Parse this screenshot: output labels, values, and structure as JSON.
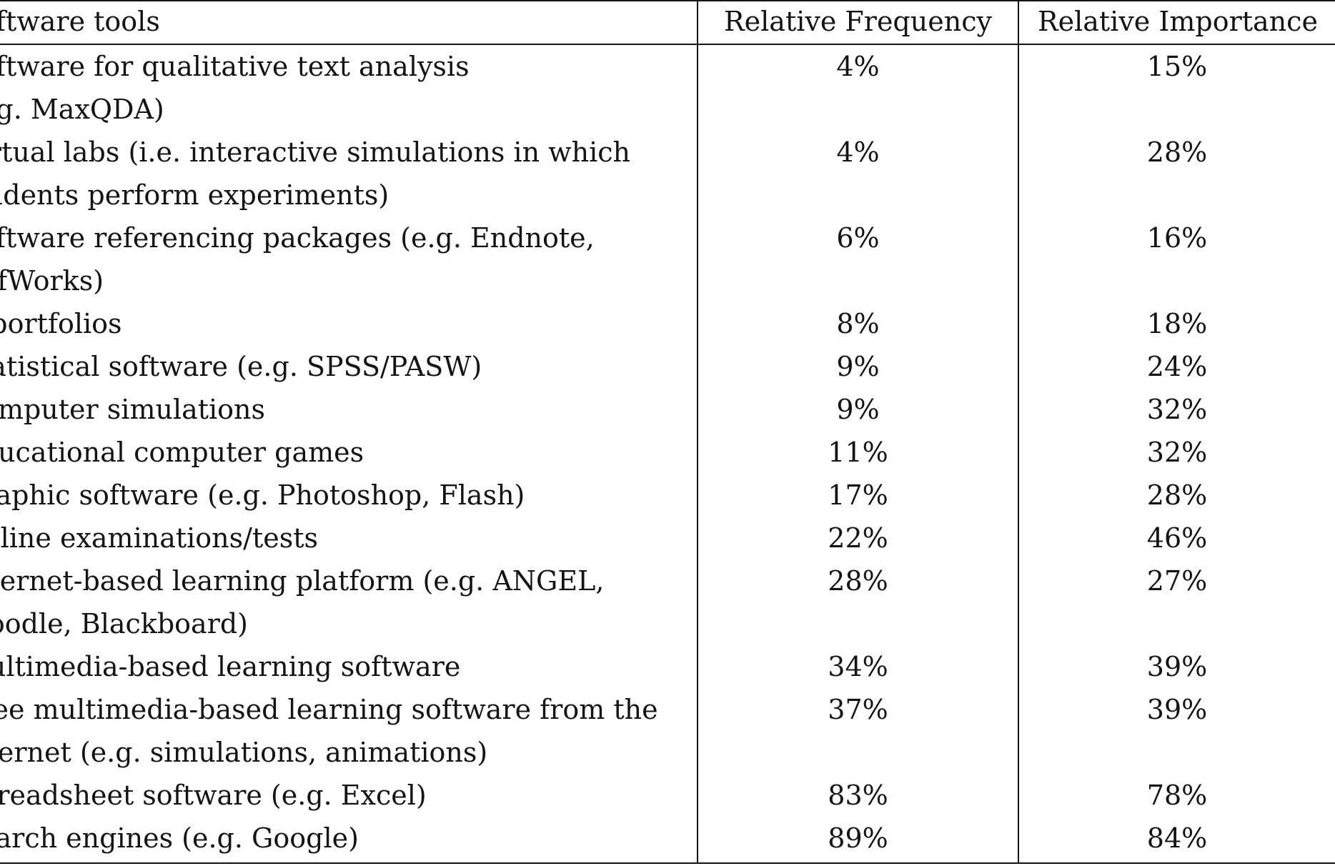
{
  "table": {
    "headers": {
      "tool": "Software tools",
      "frequency": "Relative Frequency",
      "importance": "Relative Importance"
    },
    "rows": [
      {
        "tool": [
          "Software for qualitative text analysis",
          "(e.g. MaxQDA)"
        ],
        "frequency": "4%",
        "importance": "15%"
      },
      {
        "tool": [
          "Virtual labs (i.e. interactive simulations in which",
          "students perform experiments)"
        ],
        "frequency": "4%",
        "importance": "28%"
      },
      {
        "tool": [
          "Software referencing packages (e.g. Endnote,",
          "RefWorks)"
        ],
        "frequency": "6%",
        "importance": "16%"
      },
      {
        "tool": [
          "E-portfolios"
        ],
        "frequency": "8%",
        "importance": "18%"
      },
      {
        "tool": [
          "Statistical software (e.g. SPSS/PASW)"
        ],
        "frequency": "9%",
        "importance": "24%"
      },
      {
        "tool": [
          "Computer simulations"
        ],
        "frequency": "9%",
        "importance": "32%"
      },
      {
        "tool": [
          "Educational computer games"
        ],
        "frequency": "11%",
        "importance": "32%"
      },
      {
        "tool": [
          "Graphic software (e.g. Photoshop, Flash)"
        ],
        "frequency": "17%",
        "importance": "28%"
      },
      {
        "tool": [
          "Online examinations/tests"
        ],
        "frequency": "22%",
        "importance": "46%"
      },
      {
        "tool": [
          "Internet-based learning platform (e.g. ANGEL,",
          "Moodle, Blackboard)"
        ],
        "frequency": "28%",
        "importance": "27%"
      },
      {
        "tool": [
          "Multimedia-based learning software"
        ],
        "frequency": "34%",
        "importance": "39%"
      },
      {
        "tool": [
          "Free multimedia-based learning software from the",
          "internet (e.g. simulations, animations)"
        ],
        "frequency": "37%",
        "importance": "39%"
      },
      {
        "tool": [
          "Spreadsheet software (e.g. Excel)"
        ],
        "frequency": "83%",
        "importance": "78%"
      },
      {
        "tool": [
          "Search engines (e.g. Google)"
        ],
        "frequency": "89%",
        "importance": "84%"
      }
    ]
  }
}
